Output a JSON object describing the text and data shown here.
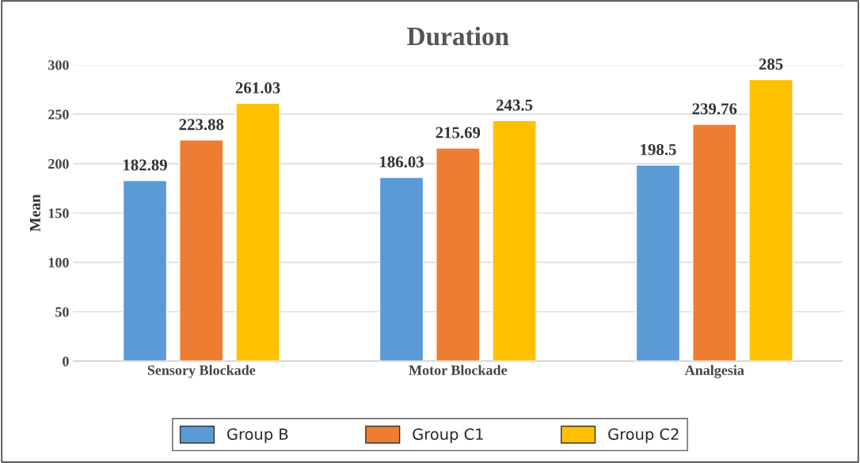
{
  "chart_data": {
    "type": "bar",
    "title": "Duration",
    "ylabel": "Mean",
    "categories": [
      "Sensory Blockade",
      "Motor Blockade",
      "Analgesia"
    ],
    "series": [
      {
        "name": "Group B",
        "color": "#5b9bd5",
        "values": [
          182.89,
          186.03,
          198.5
        ]
      },
      {
        "name": "Group C1",
        "color": "#ed7d31",
        "values": [
          223.88,
          215.69,
          239.76
        ]
      },
      {
        "name": "Group C2",
        "color": "#ffc000",
        "values": [
          261.03,
          243.5,
          285
        ]
      }
    ],
    "ylim": [
      0,
      300
    ],
    "yticks": [
      0,
      50,
      100,
      150,
      200,
      250,
      300
    ],
    "grid": "y",
    "legend": "bottom",
    "data_labels": true
  }
}
